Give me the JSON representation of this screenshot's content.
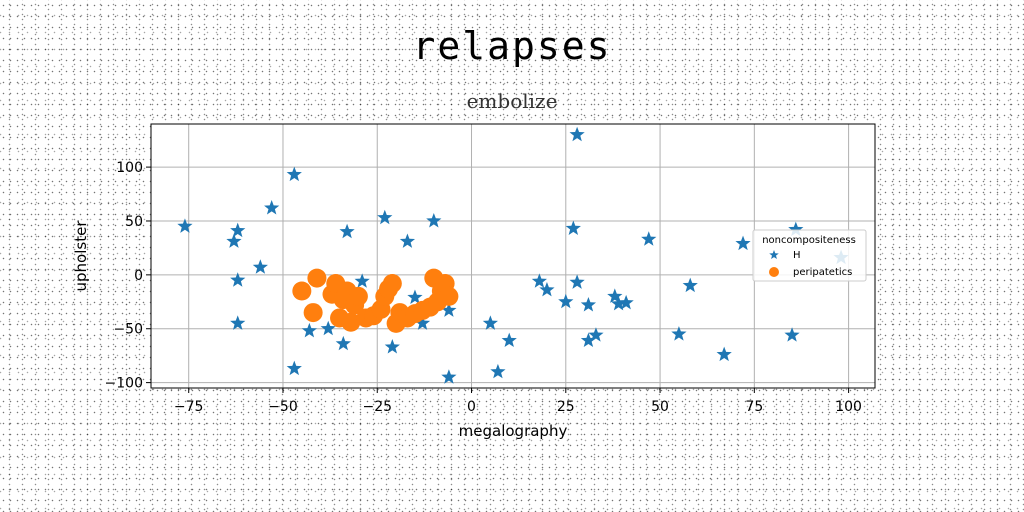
{
  "chart_data": {
    "type": "scatter",
    "title": "relapses",
    "subtitle": "embolize",
    "xlabel": "megalography",
    "ylabel": "upholster",
    "xlim": [
      -85,
      107
    ],
    "ylim": [
      -105,
      140
    ],
    "xticks": [
      -75,
      -50,
      -25,
      0,
      25,
      50,
      75,
      100
    ],
    "yticks": [
      -100,
      -50,
      0,
      50,
      100
    ],
    "grid": true,
    "legend": {
      "title": "noncompositeness",
      "position": "right"
    },
    "series": [
      {
        "name": "H",
        "marker": "star",
        "color": "#1f77b4",
        "points": [
          [
            -76,
            45
          ],
          [
            -47,
            93
          ],
          [
            -53,
            62
          ],
          [
            -62,
            41
          ],
          [
            -63,
            31
          ],
          [
            -56,
            7
          ],
          [
            -62,
            -5
          ],
          [
            -62,
            -45
          ],
          [
            -47,
            -87
          ],
          [
            -43,
            -52
          ],
          [
            -38,
            -50
          ],
          [
            -34,
            -64
          ],
          [
            -33,
            40
          ],
          [
            -29,
            -6
          ],
          [
            -23,
            53
          ],
          [
            -17,
            31
          ],
          [
            -15,
            -21
          ],
          [
            -21,
            -67
          ],
          [
            -13,
            -45
          ],
          [
            -10,
            50
          ],
          [
            -6,
            -33
          ],
          [
            -6,
            -95
          ],
          [
            5,
            -45
          ],
          [
            7,
            -90
          ],
          [
            10,
            -61
          ],
          [
            18,
            -6
          ],
          [
            20,
            -14
          ],
          [
            25,
            -25
          ],
          [
            27,
            43
          ],
          [
            28,
            130
          ],
          [
            28,
            -7
          ],
          [
            31,
            -28
          ],
          [
            31,
            -61
          ],
          [
            33,
            -56
          ],
          [
            38,
            -20
          ],
          [
            39,
            -27
          ],
          [
            41,
            -26
          ],
          [
            47,
            33
          ],
          [
            55,
            -55
          ],
          [
            58,
            -10
          ],
          [
            67,
            -74
          ],
          [
            72,
            29
          ],
          [
            85,
            -56
          ],
          [
            86,
            42
          ],
          [
            98,
            16
          ]
        ]
      },
      {
        "name": "peripatetics",
        "marker": "circle",
        "color": "#ff7f0e",
        "points": [
          [
            -45,
            -15
          ],
          [
            -42,
            -35
          ],
          [
            -41,
            -3
          ],
          [
            -37,
            -18
          ],
          [
            -36,
            -8
          ],
          [
            -35,
            -40
          ],
          [
            -34,
            -23
          ],
          [
            -33,
            -15
          ],
          [
            -32,
            -44
          ],
          [
            -31,
            -28
          ],
          [
            -30,
            -20
          ],
          [
            -28,
            -40
          ],
          [
            -26,
            -38
          ],
          [
            -24,
            -32
          ],
          [
            -23,
            -20
          ],
          [
            -22,
            -13
          ],
          [
            -21,
            -8
          ],
          [
            -20,
            -45
          ],
          [
            -19,
            -35
          ],
          [
            -17,
            -40
          ],
          [
            -15,
            -36
          ],
          [
            -13,
            -33
          ],
          [
            -11,
            -30
          ],
          [
            -10,
            -3
          ],
          [
            -9,
            -25
          ],
          [
            -8,
            -15
          ],
          [
            -7,
            -8
          ],
          [
            -6,
            -20
          ]
        ]
      }
    ]
  }
}
